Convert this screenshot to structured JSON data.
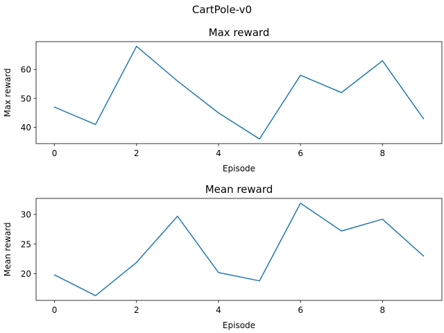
{
  "figure": {
    "suptitle": "CartPole-v0"
  },
  "chart_data": [
    {
      "type": "line",
      "title": "Max reward",
      "xlabel": "Episode",
      "ylabel": "Max reward",
      "x": [
        0,
        1,
        2,
        3,
        4,
        5,
        6,
        7,
        8,
        9
      ],
      "xlim": [
        -0.45,
        9.45
      ],
      "ylim": [
        34.4,
        69.6
      ],
      "xticks": [
        0,
        2,
        4,
        6,
        8
      ],
      "yticks": [
        40,
        50,
        60
      ],
      "grid": false,
      "color": "#1f77b4",
      "series": [
        {
          "values": [
            47,
            41,
            68,
            56,
            45,
            36,
            58,
            52,
            63,
            43
          ]
        }
      ]
    },
    {
      "type": "line",
      "title": "Mean reward",
      "xlabel": "Episode",
      "ylabel": "Mean reward",
      "x": [
        0,
        1,
        2,
        3,
        4,
        5,
        6,
        7,
        8,
        9
      ],
      "xlim": [
        -0.45,
        9.45
      ],
      "ylim": [
        15.5,
        32.7
      ],
      "xticks": [
        0,
        2,
        4,
        6,
        8
      ],
      "yticks": [
        20,
        25,
        30
      ],
      "grid": false,
      "color": "#1f77b4",
      "series": [
        {
          "values": [
            19.8,
            16.3,
            21.9,
            29.7,
            20.2,
            18.8,
            31.9,
            27.2,
            29.2,
            23.0
          ]
        }
      ]
    }
  ]
}
